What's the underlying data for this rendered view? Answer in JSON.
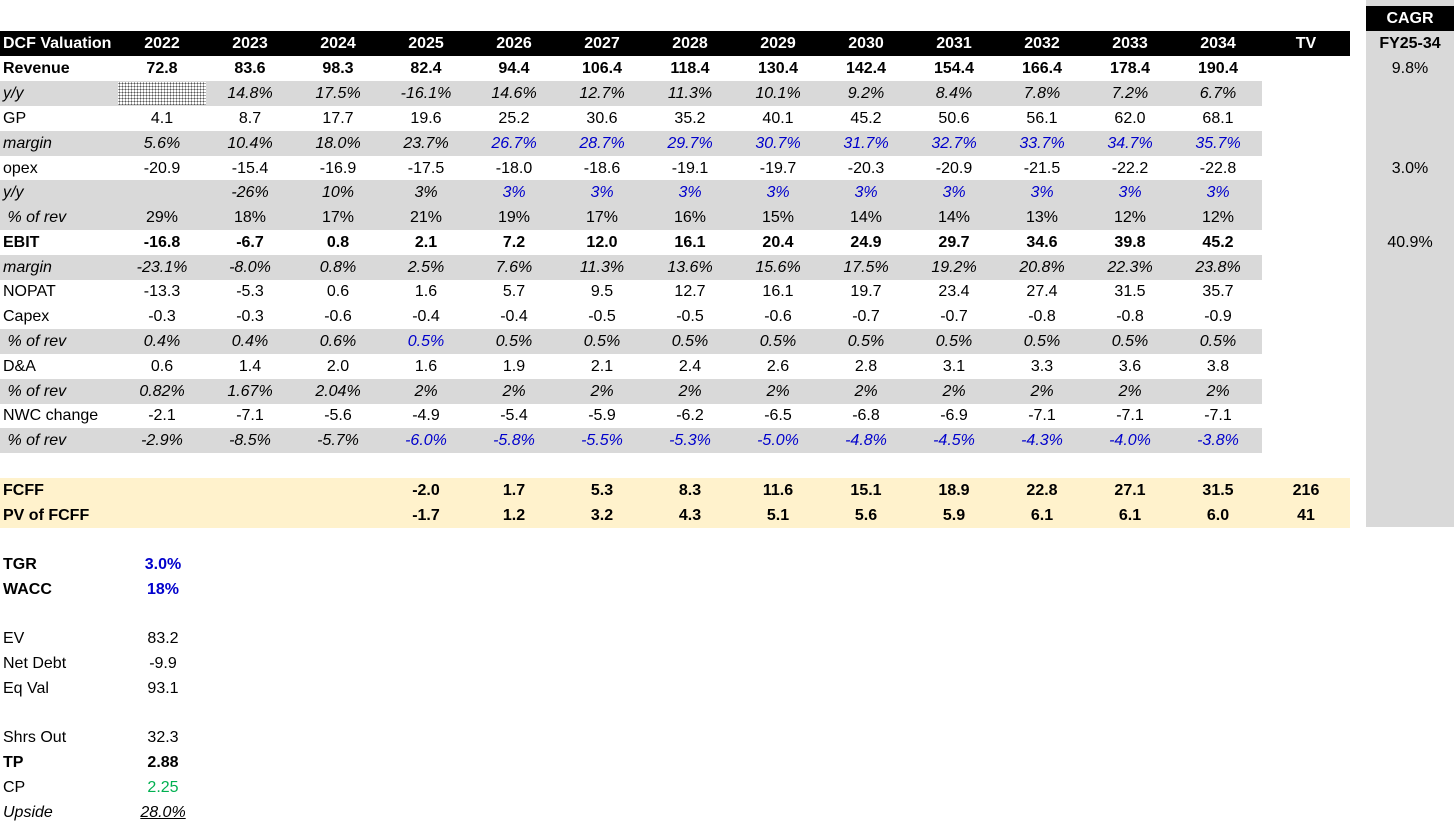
{
  "header": {
    "title": "DCF Valuation",
    "years": [
      "2022",
      "2023",
      "2024",
      "2025",
      "2026",
      "2027",
      "2028",
      "2029",
      "2030",
      "2031",
      "2032",
      "2033",
      "2034"
    ],
    "tv": "TV"
  },
  "cagr": {
    "title": "CAGR",
    "period": "FY25-34"
  },
  "rows": [
    {
      "label": "Revenue",
      "values": [
        "72.8",
        "83.6",
        "98.3",
        "82.4",
        "94.4",
        "106.4",
        "118.4",
        "130.4",
        "142.4",
        "154.4",
        "166.4",
        "178.4",
        "190.4"
      ],
      "cagr": "9.8%"
    },
    {
      "label": "y/y",
      "values": [
        "",
        "14.8%",
        "17.5%",
        "-16.1%",
        "14.6%",
        "12.7%",
        "11.3%",
        "10.1%",
        "9.2%",
        "8.4%",
        "7.8%",
        "7.2%",
        "6.7%"
      ]
    },
    {
      "label": "GP",
      "values": [
        "4.1",
        "8.7",
        "17.7",
        "19.6",
        "25.2",
        "30.6",
        "35.2",
        "40.1",
        "45.2",
        "50.6",
        "56.1",
        "62.0",
        "68.1"
      ]
    },
    {
      "label": "margin",
      "values": [
        "5.6%",
        "10.4%",
        "18.0%",
        "23.7%",
        "26.7%",
        "28.7%",
        "29.7%",
        "30.7%",
        "31.7%",
        "32.7%",
        "33.7%",
        "34.7%",
        "35.7%"
      ]
    },
    {
      "label": "opex",
      "values": [
        "-20.9",
        "-15.4",
        "-16.9",
        "-17.5",
        "-18.0",
        "-18.6",
        "-19.1",
        "-19.7",
        "-20.3",
        "-20.9",
        "-21.5",
        "-22.2",
        "-22.8"
      ],
      "cagr": "3.0%"
    },
    {
      "label": "y/y",
      "values": [
        "",
        "-26%",
        "10%",
        "3%",
        "3%",
        "3%",
        "3%",
        "3%",
        "3%",
        "3%",
        "3%",
        "3%",
        "3%"
      ]
    },
    {
      "label": " % of rev",
      "values": [
        "29%",
        "18%",
        "17%",
        "21%",
        "19%",
        "17%",
        "16%",
        "15%",
        "14%",
        "14%",
        "13%",
        "12%",
        "12%"
      ]
    },
    {
      "label": "EBIT",
      "values": [
        "-16.8",
        "-6.7",
        "0.8",
        "2.1",
        "7.2",
        "12.0",
        "16.1",
        "20.4",
        "24.9",
        "29.7",
        "34.6",
        "39.8",
        "45.2"
      ],
      "cagr": "40.9%"
    },
    {
      "label": "margin",
      "values": [
        "-23.1%",
        "-8.0%",
        "0.8%",
        "2.5%",
        "7.6%",
        "11.3%",
        "13.6%",
        "15.6%",
        "17.5%",
        "19.2%",
        "20.8%",
        "22.3%",
        "23.8%"
      ]
    },
    {
      "label": "NOPAT",
      "values": [
        "-13.3",
        "-5.3",
        "0.6",
        "1.6",
        "5.7",
        "9.5",
        "12.7",
        "16.1",
        "19.7",
        "23.4",
        "27.4",
        "31.5",
        "35.7"
      ]
    },
    {
      "label": "Capex",
      "values": [
        "-0.3",
        "-0.3",
        "-0.6",
        "-0.4",
        "-0.4",
        "-0.5",
        "-0.5",
        "-0.6",
        "-0.7",
        "-0.7",
        "-0.8",
        "-0.8",
        "-0.9"
      ]
    },
    {
      "label": " % of rev",
      "values": [
        "0.4%",
        "0.4%",
        "0.6%",
        "0.5%",
        "0.5%",
        "0.5%",
        "0.5%",
        "0.5%",
        "0.5%",
        "0.5%",
        "0.5%",
        "0.5%",
        "0.5%"
      ]
    },
    {
      "label": "D&A",
      "values": [
        "0.6",
        "1.4",
        "2.0",
        "1.6",
        "1.9",
        "2.1",
        "2.4",
        "2.6",
        "2.8",
        "3.1",
        "3.3",
        "3.6",
        "3.8"
      ]
    },
    {
      "label": " % of rev",
      "values": [
        "0.82%",
        "1.67%",
        "2.04%",
        "2%",
        "2%",
        "2%",
        "2%",
        "2%",
        "2%",
        "2%",
        "2%",
        "2%",
        "2%"
      ]
    },
    {
      "label": "NWC change",
      "values": [
        "-2.1",
        "-7.1",
        "-5.6",
        "-4.9",
        "-5.4",
        "-5.9",
        "-6.2",
        "-6.5",
        "-6.8",
        "-6.9",
        "-7.1",
        "-7.1",
        "-7.1"
      ]
    },
    {
      "label": " % of rev",
      "values": [
        "-2.9%",
        "-8.5%",
        "-5.7%",
        "-6.0%",
        "-5.8%",
        "-5.5%",
        "-5.3%",
        "-5.0%",
        "-4.8%",
        "-4.5%",
        "-4.3%",
        "-4.0%",
        "-3.8%"
      ]
    }
  ],
  "fcff": {
    "label": "FCFF",
    "values": [
      "",
      "",
      "",
      "-2.0",
      "1.7",
      "5.3",
      "8.3",
      "11.6",
      "15.1",
      "18.9",
      "22.8",
      "27.1",
      "31.5"
    ],
    "tv": "216"
  },
  "pv": {
    "label": "PV of FCFF",
    "values": [
      "",
      "",
      "",
      "-1.7",
      "1.2",
      "3.2",
      "4.3",
      "5.1",
      "5.6",
      "5.9",
      "6.1",
      "6.1",
      "6.0"
    ],
    "tv": "41"
  },
  "summary": {
    "tgr": {
      "label": "TGR",
      "value": "3.0%"
    },
    "wacc": {
      "label": "WACC",
      "value": "18%"
    },
    "ev": {
      "label": "EV",
      "value": "83.2"
    },
    "net_debt": {
      "label": "Net Debt",
      "value": "-9.9"
    },
    "eq_val": {
      "label": "Eq Val",
      "value": "93.1"
    },
    "shrs_out": {
      "label": "Shrs Out",
      "value": "32.3"
    },
    "tp": {
      "label": "TP",
      "value": "2.88"
    },
    "cp": {
      "label": "CP",
      "value": "2.25"
    },
    "upside": {
      "label": "Upside",
      "value": "28.0%"
    }
  },
  "colors": {
    "input_blue": "#0000cc",
    "price_green": "#00b050",
    "band_gray": "#d9d9d9",
    "fcff_cream": "#fff2cc",
    "header_black": "#000000"
  }
}
